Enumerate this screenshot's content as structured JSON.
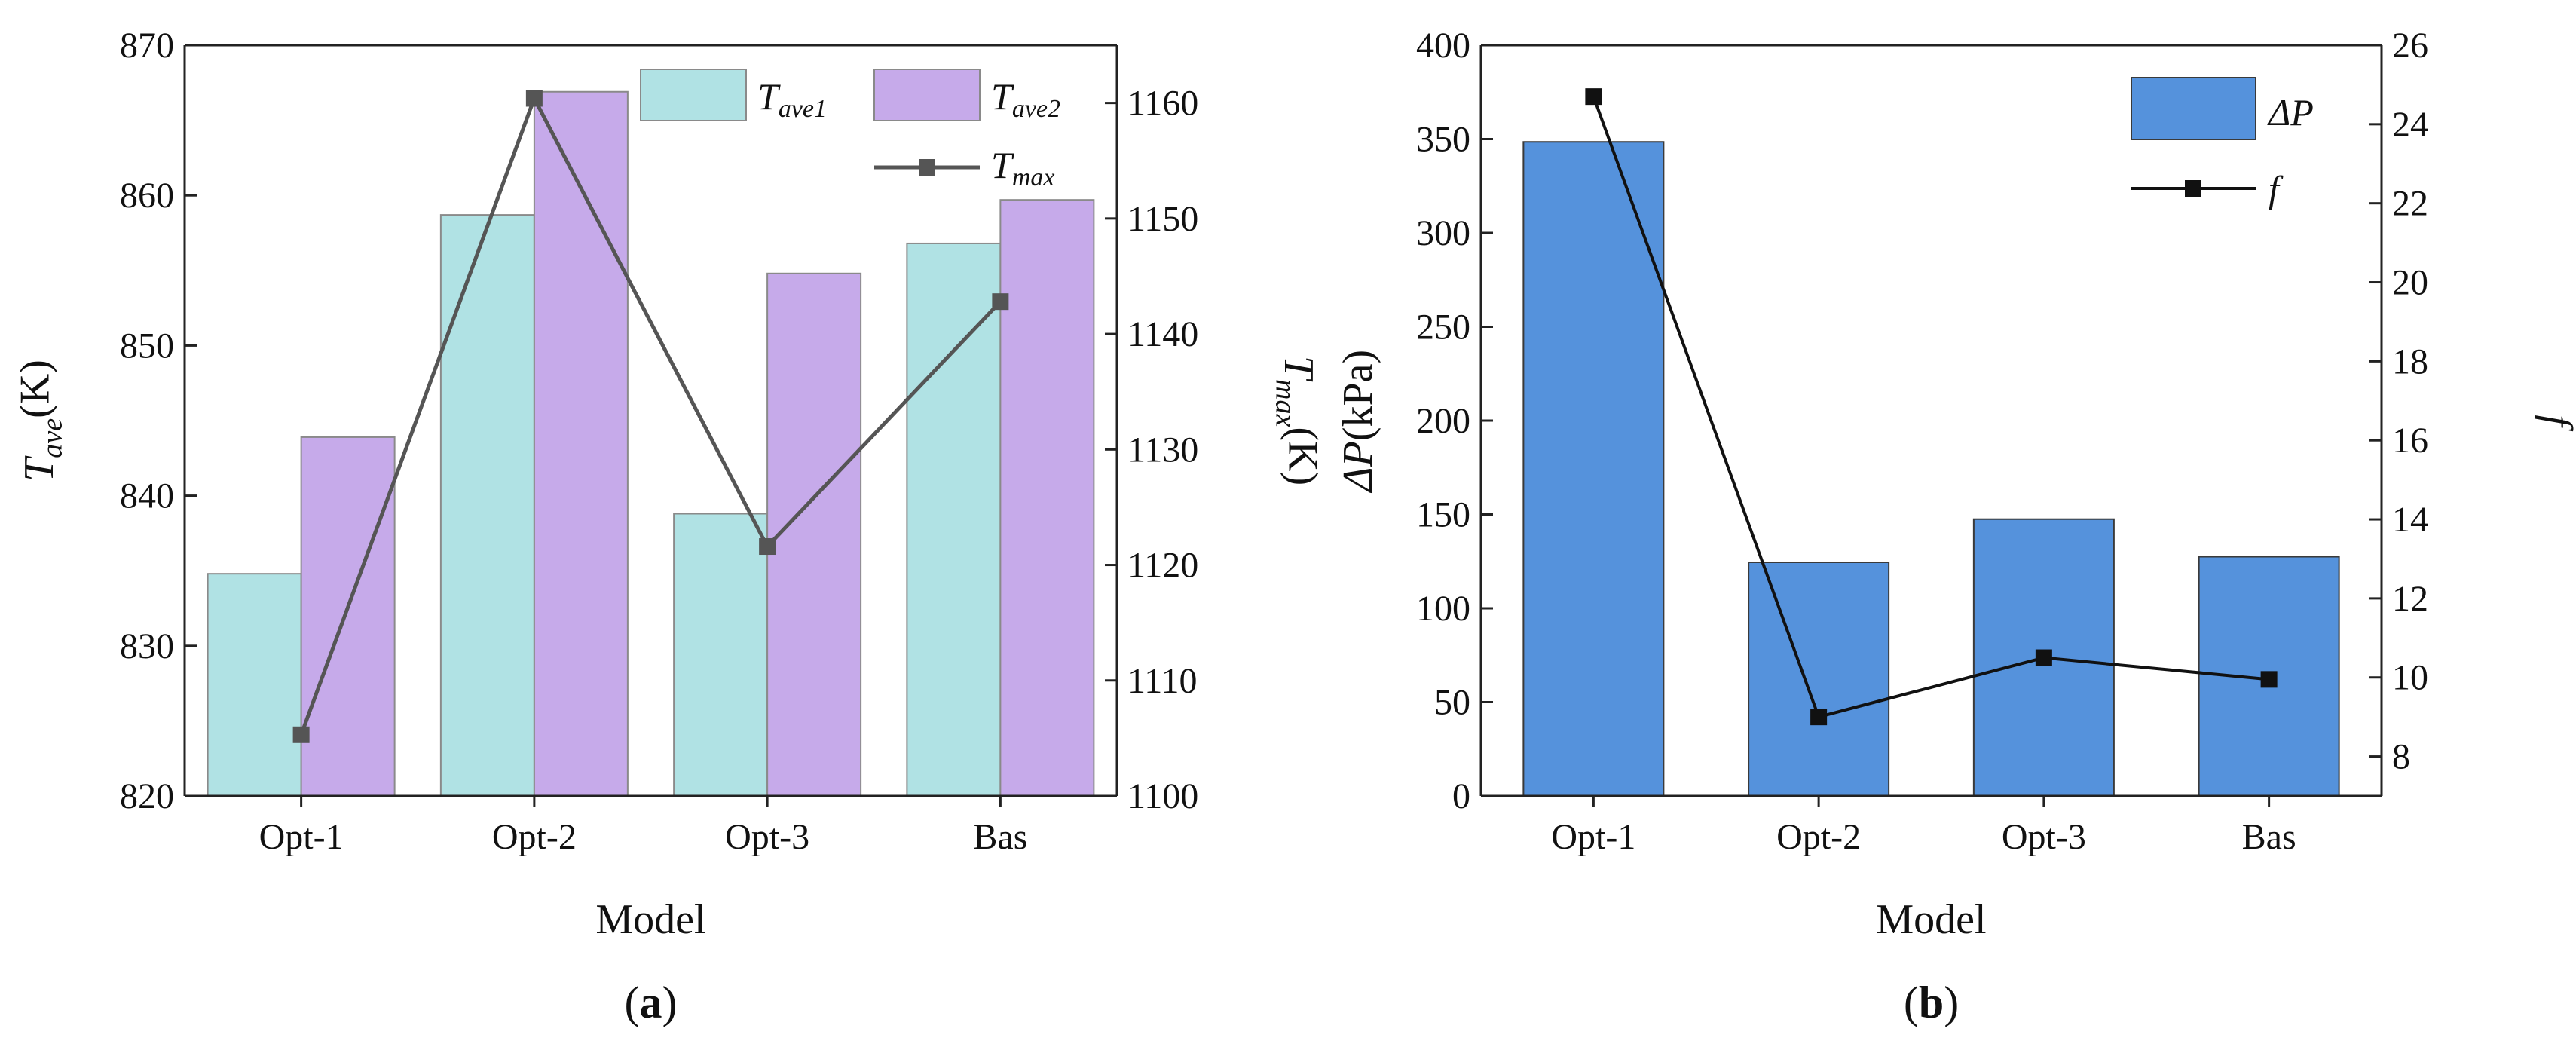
{
  "chart_data": [
    {
      "type": "bar",
      "panel_label": "(a)",
      "categories": [
        "Opt-1",
        "Opt-2",
        "Opt-3",
        "Bas"
      ],
      "xlabel": "Model",
      "ylabel_left": "T_ave(K)",
      "ylabel_left_parts": {
        "base": "T",
        "sub": "ave",
        "unit": "(K)"
      },
      "ylabel_right": "T_max(K)",
      "ylabel_right_parts": {
        "base": "T",
        "sub": "max",
        "unit": "(K)"
      },
      "ylim_left": [
        820,
        870
      ],
      "yticks_left": [
        "820",
        "830",
        "840",
        "850",
        "860",
        "870"
      ],
      "ylim_right": [
        1100,
        1165
      ],
      "yticks_right": [
        "1100",
        "1110",
        "1120",
        "1130",
        "1140",
        "1150",
        "1160"
      ],
      "series": [
        {
          "name": "T_ave1",
          "legend": {
            "base": "T",
            "sub": "ave1"
          },
          "kind": "bar",
          "axis": "left",
          "color": "#b0e2e4",
          "values": [
            834.8,
            858.7,
            838.8,
            856.8
          ]
        },
        {
          "name": "T_ave2",
          "legend": {
            "base": "T",
            "sub": "ave2"
          },
          "kind": "bar",
          "axis": "left",
          "color": "#c6aaea",
          "values": [
            843.9,
            866.9,
            854.8,
            859.7
          ]
        },
        {
          "name": "T_max",
          "legend": {
            "base": "T",
            "sub": "max"
          },
          "kind": "line",
          "axis": "right",
          "color": "#555555",
          "values": [
            1105.3,
            1160.4,
            1121.6,
            1142.8
          ]
        }
      ],
      "legend_position": "top-right"
    },
    {
      "type": "bar",
      "panel_label": "(b)",
      "categories": [
        "Opt-1",
        "Opt-2",
        "Opt-3",
        "Bas"
      ],
      "xlabel": "Model",
      "ylabel_left": "ΔP(kPa)",
      "ylabel_left_parts": {
        "base": "ΔP",
        "sub": "",
        "unit": "(kPa)"
      },
      "ylabel_right": "f",
      "ylim_left": [
        0,
        400
      ],
      "yticks_left": [
        "0",
        "50",
        "100",
        "150",
        "200",
        "250",
        "300",
        "350",
        "400"
      ],
      "ylim_right": [
        7,
        26
      ],
      "yticks_right": [
        "8",
        "10",
        "12",
        "14",
        "16",
        "18",
        "20",
        "22",
        "24",
        "26"
      ],
      "series": [
        {
          "name": "ΔP",
          "legend": {
            "base": "ΔP",
            "sub": ""
          },
          "kind": "bar",
          "axis": "left",
          "color": "#5592dc",
          "values": [
            348.5,
            124.5,
            147.5,
            127.5
          ]
        },
        {
          "name": "f",
          "legend": {
            "base": "f",
            "sub": ""
          },
          "kind": "line",
          "axis": "right",
          "color": "#111111",
          "values": [
            24.7,
            9.0,
            10.5,
            9.95
          ]
        }
      ],
      "legend_position": "top-right"
    }
  ]
}
